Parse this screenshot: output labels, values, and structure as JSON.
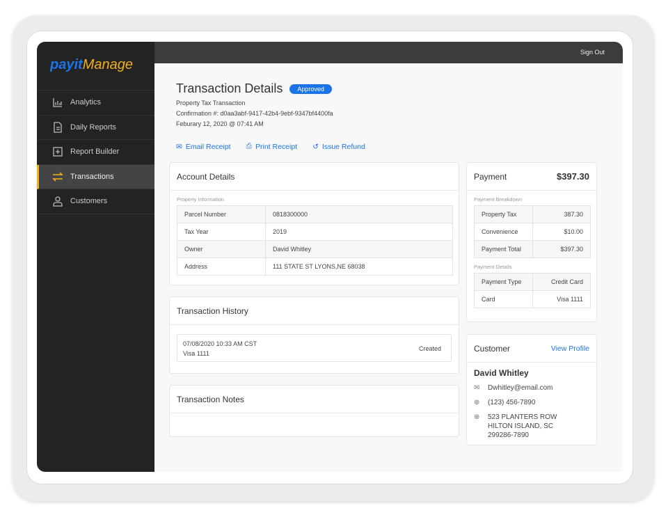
{
  "brand": {
    "pay": "payit",
    "manage": "Manage"
  },
  "sidebar": {
    "items": [
      {
        "label": "Analytics",
        "icon": "bar-chart-icon"
      },
      {
        "label": "Daily Reports",
        "icon": "document-icon"
      },
      {
        "label": "Report Builder",
        "icon": "plus-square-icon"
      },
      {
        "label": "Transactions",
        "icon": "transfer-arrows-icon",
        "active": true
      },
      {
        "label": "Customers",
        "icon": "user-icon"
      }
    ]
  },
  "topbar": {
    "sign_out": "Sign Out"
  },
  "header": {
    "title": "Transaction Details",
    "status": "Approved",
    "type": "Property Tax Transaction",
    "confirmation": "Confirmation #: d0aa3abf-9417-42b4-9ebf-9347bf4400fa",
    "date": "Feburary 12, 2020 @ 07:41 AM"
  },
  "actions": {
    "email": "Email Receipt",
    "print": "Print Receipt",
    "refund": "Issue Refund"
  },
  "account": {
    "title": "Account Details",
    "section": "Property Information",
    "rows": [
      {
        "label": "Parcel Number",
        "value": "0818300000"
      },
      {
        "label": "Tax Year",
        "value": "2019"
      },
      {
        "label": "Owner",
        "value": "David Whitley"
      },
      {
        "label": "Address",
        "value": "111 STATE ST LYONS,NE 68038"
      }
    ]
  },
  "history": {
    "title": "Transaction History",
    "entries": [
      {
        "datetime": "07/08/2020 10:33 AM CST",
        "card": "Visa 1111",
        "status": "Created"
      }
    ]
  },
  "notes": {
    "title": "Transaction Notes"
  },
  "payment": {
    "title": "Payment",
    "total": "$397.30",
    "breakdown_label": "Payment Breakdown",
    "breakdown": [
      {
        "label": "Property Tax",
        "value": "387.30"
      },
      {
        "label": "Convenience",
        "value": "$10.00"
      },
      {
        "label": "Payment Total",
        "value": "$397.30"
      }
    ],
    "details_label": "Payment Details",
    "details": [
      {
        "label": "Payment Type",
        "value": "Credit Card"
      },
      {
        "label": "Card",
        "value": "Visa 1111"
      }
    ]
  },
  "customer": {
    "title": "Customer",
    "view_profile": "View Profile",
    "name": "David Whitley",
    "email": "Dwhitley@email.com",
    "phone": "(123) 456-7890",
    "address1": "523 PLANTERS ROW",
    "address2": "HILTON ISLAND, SC",
    "address3": "299286-7890"
  },
  "colors": {
    "accent": "#1a73e8",
    "brand_yellow": "#f2b01e",
    "sidebar": "#232323"
  }
}
